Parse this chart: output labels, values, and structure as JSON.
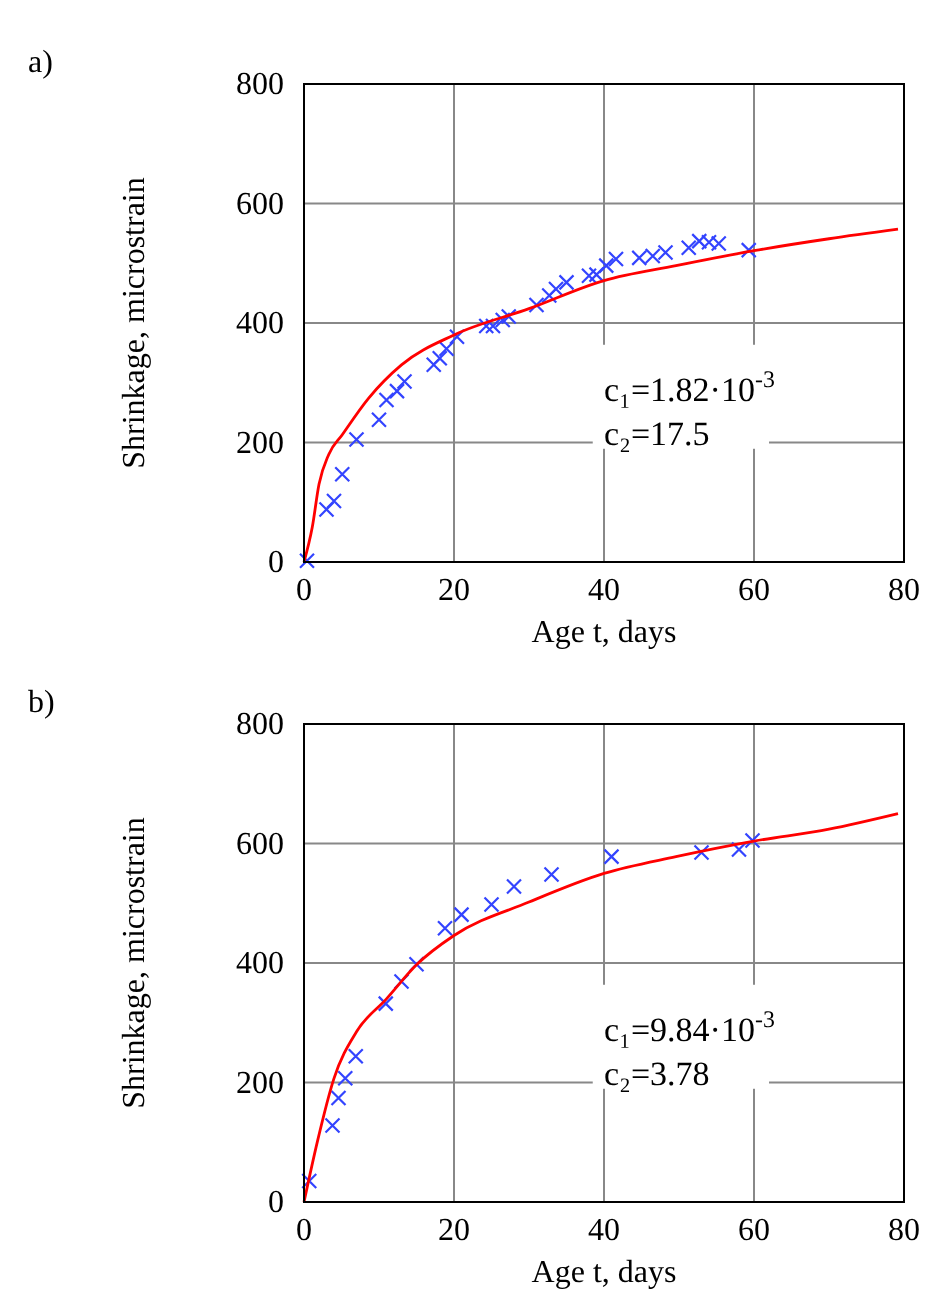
{
  "chart_data": [
    {
      "type": "scatter",
      "title": "a)",
      "xlabel": "Age t, days",
      "ylabel": "Shrinkage, microstrain",
      "xlim": [
        0,
        80
      ],
      "ylim": [
        0,
        800
      ],
      "xticks": [
        0,
        20,
        40,
        60,
        80
      ],
      "yticks": [
        0,
        200,
        400,
        600,
        800
      ],
      "grid": true,
      "annotations": [
        "c₁=1.82·10$^{-3}$",
        "c₂=17.5"
      ],
      "series": [
        {
          "type": "scatter",
          "color": "#3344ff",
          "marker": "cross",
          "x": [
            0.4,
            3,
            4,
            5.1,
            7,
            10,
            11,
            12.4,
            13.4,
            17.3,
            18.1,
            19,
            20.4,
            24.3,
            25.2,
            26.5,
            27.3,
            31,
            32.7,
            33.6,
            35,
            38,
            39,
            40.3,
            41.6,
            44.7,
            46.5,
            48.2,
            51.3,
            52.7,
            54,
            55.3,
            59.3
          ],
          "values": [
            2,
            88,
            102,
            147,
            205,
            238,
            271,
            286,
            302,
            330,
            341,
            357,
            377,
            395,
            395,
            405,
            411,
            430,
            446,
            457,
            468,
            479,
            481,
            496,
            507,
            509,
            512,
            518,
            526,
            537,
            535,
            533,
            522
          ]
        },
        {
          "type": "line",
          "color": "#ff0000",
          "marker": "none",
          "x": [
            0,
            1.1,
            2,
            3.3,
            5.1,
            8.6,
            13,
            20,
            30,
            40,
            49.6,
            60,
            70,
            79.2
          ],
          "values": [
            0,
            58,
            130,
            180,
            213,
            274,
            330,
            380,
            424,
            471,
            496,
            521,
            541,
            557
          ]
        }
      ]
    },
    {
      "type": "scatter",
      "title": "b)",
      "xlabel": "Age t, days",
      "ylabel": "Shrinkage, microstrain",
      "xlim": [
        0,
        80
      ],
      "ylim": [
        0,
        800
      ],
      "xticks": [
        0,
        20,
        40,
        60,
        80
      ],
      "yticks": [
        0,
        200,
        400,
        600,
        800
      ],
      "grid": true,
      "annotations": [
        "c₁=9.84·10$^{-3}$",
        "c₂=3.78"
      ],
      "series": [
        {
          "type": "scatter",
          "color": "#3344ff",
          "marker": "cross",
          "x": [
            0.7,
            3.8,
            4.6,
            5.5,
            6.9,
            10.9,
            13,
            15,
            18.8,
            21,
            25,
            28,
            33,
            41,
            53,
            58,
            59.8
          ],
          "values": [
            35,
            128,
            174,
            207,
            244,
            332,
            369,
            398,
            458,
            481,
            498,
            528,
            548,
            578,
            585,
            590,
            605
          ]
        },
        {
          "type": "line",
          "color": "#ff0000",
          "marker": "none",
          "x": [
            0,
            1.8,
            4,
            7,
            11,
            15,
            20,
            30,
            40,
            49.6,
            60,
            70,
            79.2
          ],
          "values": [
            0,
            102,
            207,
            285,
            340,
            397,
            446,
            502,
            550,
            578,
            604,
            624,
            650
          ]
        }
      ]
    }
  ]
}
